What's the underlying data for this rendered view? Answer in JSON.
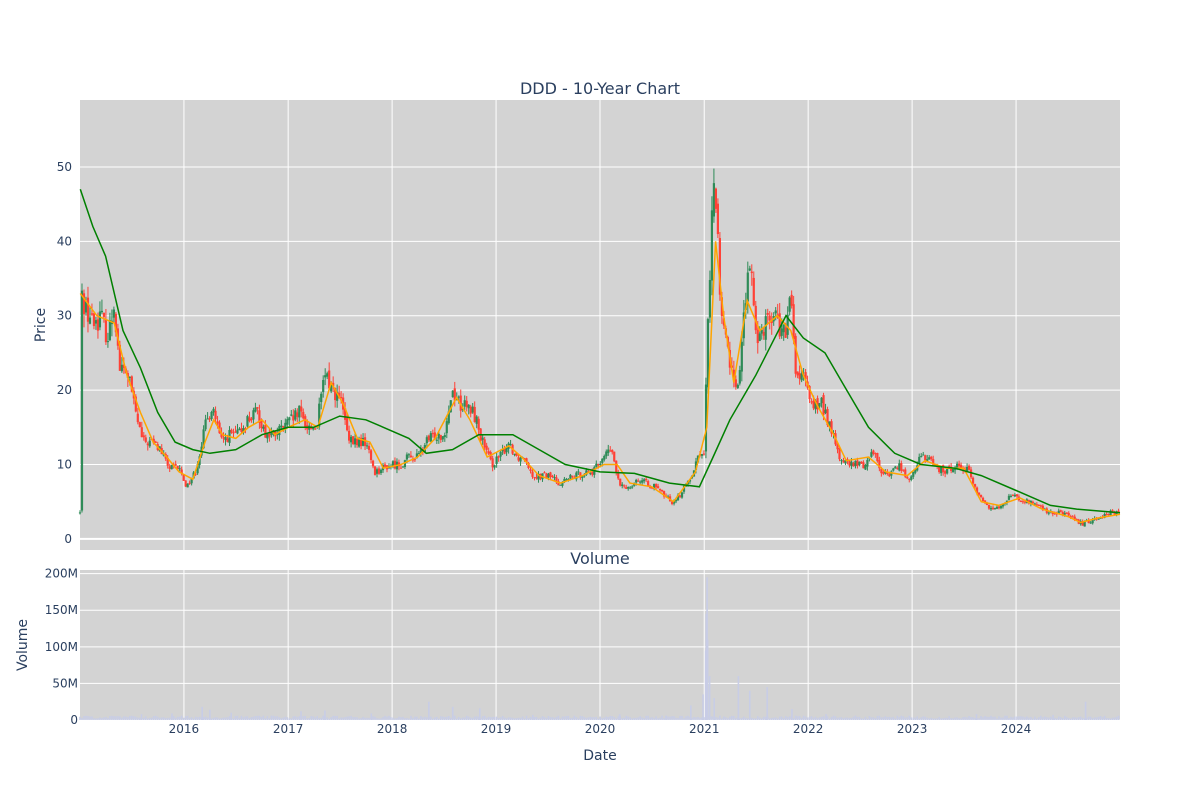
{
  "chart_data": [
    {
      "type": "candlestick",
      "title": "DDD - 10-Year Chart",
      "xlabel": "",
      "ylabel": "Price",
      "xlim": [
        "2015-01-01",
        "2024-12-31"
      ],
      "ylim": [
        -1.5,
        59
      ],
      "y_ticks": [
        0,
        10,
        20,
        30,
        40,
        50
      ],
      "grid": true,
      "background_color": "#d3d3d3",
      "increasing_color": "#2e8b57",
      "decreasing_color": "#ff4136",
      "close_path": [
        [
          "2015-01-02",
          33
        ],
        [
          "2015-02-15",
          29
        ],
        [
          "2015-03-15",
          30
        ],
        [
          "2015-04-10",
          27
        ],
        [
          "2015-05-01",
          32
        ],
        [
          "2015-05-20",
          23
        ],
        [
          "2015-06-20",
          22
        ],
        [
          "2015-07-15",
          17
        ],
        [
          "2015-08-10",
          13
        ],
        [
          "2015-09-10",
          13
        ],
        [
          "2015-10-10",
          12
        ],
        [
          "2015-11-10",
          9.5
        ],
        [
          "2015-12-15",
          9.5
        ],
        [
          "2016-01-10",
          7
        ],
        [
          "2016-02-10",
          9
        ],
        [
          "2016-03-15",
          15
        ],
        [
          "2016-04-10",
          18
        ],
        [
          "2016-05-10",
          13
        ],
        [
          "2016-06-10",
          14
        ],
        [
          "2016-07-10",
          14
        ],
        [
          "2016-08-10",
          16
        ],
        [
          "2016-09-15",
          17
        ],
        [
          "2016-10-15",
          14
        ],
        [
          "2016-11-15",
          14
        ],
        [
          "2016-12-15",
          15
        ],
        [
          "2017-01-15",
          16
        ],
        [
          "2017-02-10",
          17
        ],
        [
          "2017-03-10",
          15
        ],
        [
          "2017-04-10",
          15
        ],
        [
          "2017-05-10",
          22
        ],
        [
          "2017-06-10",
          20
        ],
        [
          "2017-07-10",
          18
        ],
        [
          "2017-08-01",
          13
        ],
        [
          "2017-09-01",
          13
        ],
        [
          "2017-10-01",
          13
        ],
        [
          "2017-11-01",
          9
        ],
        [
          "2017-12-01",
          9.5
        ],
        [
          "2018-01-01",
          10
        ],
        [
          "2018-02-01",
          10
        ],
        [
          "2018-03-01",
          11
        ],
        [
          "2018-04-01",
          11
        ],
        [
          "2018-05-01",
          13
        ],
        [
          "2018-06-01",
          14
        ],
        [
          "2018-07-01",
          14
        ],
        [
          "2018-08-01",
          20
        ],
        [
          "2018-09-01",
          18
        ],
        [
          "2018-10-15",
          17
        ],
        [
          "2018-11-15",
          13
        ],
        [
          "2018-12-15",
          10
        ],
        [
          "2019-01-15",
          11
        ],
        [
          "2019-02-15",
          13
        ],
        [
          "2019-03-15",
          11
        ],
        [
          "2019-04-15",
          11
        ],
        [
          "2019-05-10",
          8.5
        ],
        [
          "2019-06-10",
          8.5
        ],
        [
          "2019-07-10",
          8.5
        ],
        [
          "2019-08-10",
          7.5
        ],
        [
          "2019-09-10",
          8
        ],
        [
          "2019-10-10",
          8.5
        ],
        [
          "2019-11-10",
          9
        ],
        [
          "2019-12-10",
          9
        ],
        [
          "2020-01-10",
          11
        ],
        [
          "2020-02-10",
          12
        ],
        [
          "2020-03-10",
          7
        ],
        [
          "2020-04-10",
          7
        ],
        [
          "2020-05-10",
          8
        ],
        [
          "2020-06-10",
          7.5
        ],
        [
          "2020-07-10",
          7
        ],
        [
          "2020-08-10",
          6
        ],
        [
          "2020-09-10",
          5
        ],
        [
          "2020-10-10",
          6
        ],
        [
          "2020-11-10",
          8
        ],
        [
          "2020-12-10",
          11
        ],
        [
          "2021-01-01",
          12
        ],
        [
          "2021-01-15",
          30
        ],
        [
          "2021-02-05",
          50
        ],
        [
          "2021-02-15",
          42
        ],
        [
          "2021-03-01",
          30
        ],
        [
          "2021-04-01",
          24
        ],
        [
          "2021-05-01",
          20
        ],
        [
          "2021-05-20",
          31
        ],
        [
          "2021-06-10",
          36
        ],
        [
          "2021-07-10",
          27
        ],
        [
          "2021-08-10",
          30
        ],
        [
          "2021-09-10",
          30
        ],
        [
          "2021-10-10",
          27
        ],
        [
          "2021-11-01",
          32
        ],
        [
          "2021-11-20",
          22
        ],
        [
          "2021-12-20",
          21
        ],
        [
          "2022-01-20",
          18
        ],
        [
          "2022-02-20",
          18
        ],
        [
          "2022-03-20",
          15
        ],
        [
          "2022-04-20",
          11
        ],
        [
          "2022-05-20",
          10
        ],
        [
          "2022-06-20",
          10
        ],
        [
          "2022-07-20",
          10
        ],
        [
          "2022-08-20",
          12
        ],
        [
          "2022-09-20",
          8.5
        ],
        [
          "2022-10-20",
          9
        ],
        [
          "2022-11-20",
          10
        ],
        [
          "2022-12-20",
          7.5
        ],
        [
          "2023-01-20",
          10.5
        ],
        [
          "2023-02-20",
          11
        ],
        [
          "2023-03-20",
          10
        ],
        [
          "2023-04-20",
          9
        ],
        [
          "2023-05-20",
          9.5
        ],
        [
          "2023-06-20",
          10
        ],
        [
          "2023-07-20",
          9
        ],
        [
          "2023-08-20",
          6
        ],
        [
          "2023-09-20",
          4.5
        ],
        [
          "2023-10-20",
          4
        ],
        [
          "2023-11-20",
          5
        ],
        [
          "2023-12-20",
          6
        ],
        [
          "2024-01-20",
          5
        ],
        [
          "2024-02-20",
          5
        ],
        [
          "2024-03-20",
          4.5
        ],
        [
          "2024-04-20",
          3.5
        ],
        [
          "2024-05-20",
          3.5
        ],
        [
          "2024-06-20",
          3.5
        ],
        [
          "2024-07-20",
          2.5
        ],
        [
          "2024-08-20",
          2
        ],
        [
          "2024-09-20",
          2.5
        ],
        [
          "2024-10-20",
          3
        ],
        [
          "2024-11-20",
          3.5
        ],
        [
          "2024-12-31",
          3.5
        ]
      ],
      "series": [
        {
          "style": "line",
          "color": "#ffa500",
          "values": [
            [
              "2015-01-02",
              33
            ],
            [
              "2015-03-01",
              30
            ],
            [
              "2015-05-01",
              29
            ],
            [
              "2015-06-15",
              22
            ],
            [
              "2015-08-01",
              17
            ],
            [
              "2015-09-15",
              13
            ],
            [
              "2015-11-01",
              11
            ],
            [
              "2015-12-15",
              9
            ],
            [
              "2016-02-01",
              8
            ],
            [
              "2016-03-15",
              13
            ],
            [
              "2016-04-15",
              16
            ],
            [
              "2016-05-15",
              14
            ],
            [
              "2016-07-01",
              13.5
            ],
            [
              "2016-08-15",
              15
            ],
            [
              "2016-10-01",
              16
            ],
            [
              "2016-11-15",
              14
            ],
            [
              "2017-01-01",
              15
            ],
            [
              "2017-03-01",
              16
            ],
            [
              "2017-04-15",
              15
            ],
            [
              "2017-06-01",
              21
            ],
            [
              "2017-07-15",
              18
            ],
            [
              "2017-09-01",
              13.5
            ],
            [
              "2017-10-15",
              13
            ],
            [
              "2017-12-01",
              9.5
            ],
            [
              "2018-02-01",
              10
            ],
            [
              "2018-04-01",
              11
            ],
            [
              "2018-06-01",
              13.5
            ],
            [
              "2018-08-15",
              19
            ],
            [
              "2018-10-01",
              16
            ],
            [
              "2018-12-01",
              11
            ],
            [
              "2019-02-15",
              12.5
            ],
            [
              "2019-04-01",
              11
            ],
            [
              "2019-06-01",
              8.5
            ],
            [
              "2019-08-15",
              7.5
            ],
            [
              "2019-11-01",
              8.5
            ],
            [
              "2020-01-15",
              10
            ],
            [
              "2020-03-01",
              10
            ],
            [
              "2020-04-15",
              7.5
            ],
            [
              "2020-07-01",
              7
            ],
            [
              "2020-09-15",
              5
            ],
            [
              "2020-12-01",
              9
            ],
            [
              "2021-01-10",
              15
            ],
            [
              "2021-02-10",
              40
            ],
            [
              "2021-03-10",
              30
            ],
            [
              "2021-04-15",
              21
            ],
            [
              "2021-06-01",
              32
            ],
            [
              "2021-07-15",
              28
            ],
            [
              "2021-09-15",
              30
            ],
            [
              "2021-11-01",
              28
            ],
            [
              "2021-12-15",
              22
            ],
            [
              "2022-02-01",
              18
            ],
            [
              "2022-04-01",
              14
            ],
            [
              "2022-05-15",
              10.5
            ],
            [
              "2022-08-01",
              11
            ],
            [
              "2022-10-01",
              9
            ],
            [
              "2022-12-15",
              8.5
            ],
            [
              "2023-02-15",
              10.5
            ],
            [
              "2023-05-01",
              9.5
            ],
            [
              "2023-07-01",
              9.5
            ],
            [
              "2023-09-01",
              5
            ],
            [
              "2023-11-01",
              4.5
            ],
            [
              "2024-01-15",
              5.5
            ],
            [
              "2024-04-01",
              4
            ],
            [
              "2024-07-01",
              3
            ],
            [
              "2024-08-15",
              2.2
            ],
            [
              "2024-10-15",
              2.8
            ],
            [
              "2024-12-31",
              3.3
            ]
          ]
        },
        {
          "style": "line",
          "color": "#008000",
          "values": [
            [
              "2015-01-02",
              47
            ],
            [
              "2015-02-15",
              42
            ],
            [
              "2015-04-01",
              38
            ],
            [
              "2015-06-01",
              28
            ],
            [
              "2015-08-01",
              23
            ],
            [
              "2015-10-01",
              17
            ],
            [
              "2015-12-01",
              13
            ],
            [
              "2016-02-01",
              12
            ],
            [
              "2016-04-01",
              11.5
            ],
            [
              "2016-07-01",
              12
            ],
            [
              "2016-10-01",
              14
            ],
            [
              "2017-01-01",
              15
            ],
            [
              "2017-04-01",
              15
            ],
            [
              "2017-07-01",
              16.5
            ],
            [
              "2017-10-01",
              16
            ],
            [
              "2017-12-01",
              15
            ],
            [
              "2018-03-01",
              13.5
            ],
            [
              "2018-05-01",
              11.5
            ],
            [
              "2018-08-01",
              12
            ],
            [
              "2018-11-01",
              14
            ],
            [
              "2019-03-01",
              14
            ],
            [
              "2019-06-01",
              12
            ],
            [
              "2019-09-01",
              10
            ],
            [
              "2020-01-01",
              9
            ],
            [
              "2020-05-01",
              8.8
            ],
            [
              "2020-09-01",
              7.5
            ],
            [
              "2020-12-15",
              7
            ],
            [
              "2021-02-01",
              11
            ],
            [
              "2021-04-01",
              16
            ],
            [
              "2021-07-01",
              22
            ],
            [
              "2021-10-15",
              30
            ],
            [
              "2021-12-15",
              27
            ],
            [
              "2022-03-01",
              25
            ],
            [
              "2022-05-01",
              21
            ],
            [
              "2022-08-01",
              15
            ],
            [
              "2022-11-01",
              11.5
            ],
            [
              "2023-02-01",
              10
            ],
            [
              "2023-06-01",
              9.5
            ],
            [
              "2023-09-01",
              8.5
            ],
            [
              "2024-01-01",
              6.5
            ],
            [
              "2024-05-01",
              4.5
            ],
            [
              "2024-08-01",
              4
            ],
            [
              "2024-12-31",
              3.5
            ]
          ]
        }
      ]
    },
    {
      "type": "bar",
      "title": "Volume",
      "xlabel": "Date",
      "ylabel": "Volume",
      "xlim": [
        "2015-01-01",
        "2024-12-31"
      ],
      "ylim": [
        0,
        205000000
      ],
      "y_ticks": [
        {
          "value": 0,
          "label": "0"
        },
        {
          "value": 50000000,
          "label": "50M"
        },
        {
          "value": 100000000,
          "label": "100M"
        },
        {
          "value": 150000000,
          "label": "150M"
        },
        {
          "value": 200000000,
          "label": "200M"
        }
      ],
      "x_ticks": [
        {
          "value": "2016-01-01",
          "label": "2016"
        },
        {
          "value": "2017-01-01",
          "label": "2017"
        },
        {
          "value": "2018-01-01",
          "label": "2018"
        },
        {
          "value": "2019-01-01",
          "label": "2019"
        },
        {
          "value": "2020-01-01",
          "label": "2020"
        },
        {
          "value": "2021-01-01",
          "label": "2021"
        },
        {
          "value": "2022-01-01",
          "label": "2022"
        },
        {
          "value": "2023-01-01",
          "label": "2023"
        },
        {
          "value": "2024-01-01",
          "label": "2024"
        }
      ],
      "grid": true,
      "background_color": "#d3d3d3",
      "bar_color": "#c8cde6",
      "baseline_volume": 4000000,
      "spikes": [
        [
          "2015-08-05",
          8000000
        ],
        [
          "2015-11-20",
          9000000
        ],
        [
          "2016-03-05",
          18000000
        ],
        [
          "2016-04-01",
          14000000
        ],
        [
          "2016-06-15",
          10000000
        ],
        [
          "2017-02-15",
          12000000
        ],
        [
          "2017-05-10",
          13000000
        ],
        [
          "2017-10-20",
          9000000
        ],
        [
          "2018-05-10",
          25000000
        ],
        [
          "2018-08-02",
          18000000
        ],
        [
          "2018-11-05",
          16000000
        ],
        [
          "2019-05-10",
          7000000
        ],
        [
          "2020-03-10",
          8000000
        ],
        [
          "2020-08-20",
          6000000
        ],
        [
          "2020-11-15",
          20000000
        ],
        [
          "2020-12-28",
          35000000
        ],
        [
          "2021-01-06",
          95000000
        ],
        [
          "2021-01-08",
          145000000
        ],
        [
          "2021-01-11",
          195000000
        ],
        [
          "2021-01-13",
          110000000
        ],
        [
          "2021-01-20",
          60000000
        ],
        [
          "2021-02-05",
          30000000
        ],
        [
          "2021-05-01",
          60000000
        ],
        [
          "2021-06-10",
          40000000
        ],
        [
          "2021-08-10",
          45000000
        ],
        [
          "2021-11-05",
          15000000
        ],
        [
          "2022-03-05",
          8000000
        ],
        [
          "2023-08-15",
          8000000
        ],
        [
          "2024-05-10",
          7000000
        ],
        [
          "2024-09-01",
          25000000
        ]
      ]
    }
  ]
}
